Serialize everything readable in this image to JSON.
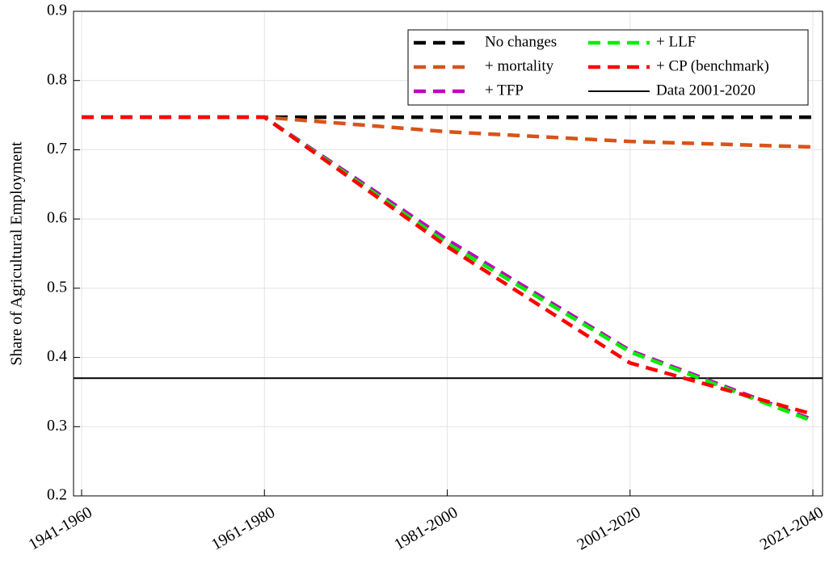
{
  "chart_data": {
    "type": "line",
    "y_label": "Share of Agricultural Employment",
    "categories": [
      "1941-1960",
      "1961-1980",
      "1981-2000",
      "2001-2020",
      "2021-2040"
    ],
    "series": [
      {
        "name": "No changes",
        "color": "#000000",
        "values": [
          0.747,
          0.747,
          0.747,
          0.747,
          0.747
        ]
      },
      {
        "name": "+ mortality",
        "color": "#d95319",
        "values": [
          0.747,
          0.747,
          0.726,
          0.712,
          0.704
        ]
      },
      {
        "name": "+ TFP",
        "color": "#bf00bf",
        "values": [
          0.747,
          0.747,
          0.57,
          0.41,
          0.31
        ]
      },
      {
        "name": "+ LLF",
        "color": "#00ee00",
        "values": [
          0.747,
          0.747,
          0.565,
          0.408,
          0.308
        ]
      },
      {
        "name": "+ CP (benchmark)",
        "color": "#ff0000",
        "values": [
          0.747,
          0.747,
          0.56,
          0.392,
          0.318
        ]
      }
    ],
    "hlines": [
      {
        "name": "Data 2001-2020",
        "color": "#000000",
        "value": 0.37
      }
    ],
    "ylim": [
      0.2,
      0.9
    ],
    "yticks": [
      0.2,
      0.3,
      0.4,
      0.5,
      0.6,
      0.7,
      0.8,
      0.9
    ],
    "grid": true,
    "legend": "upper right"
  }
}
